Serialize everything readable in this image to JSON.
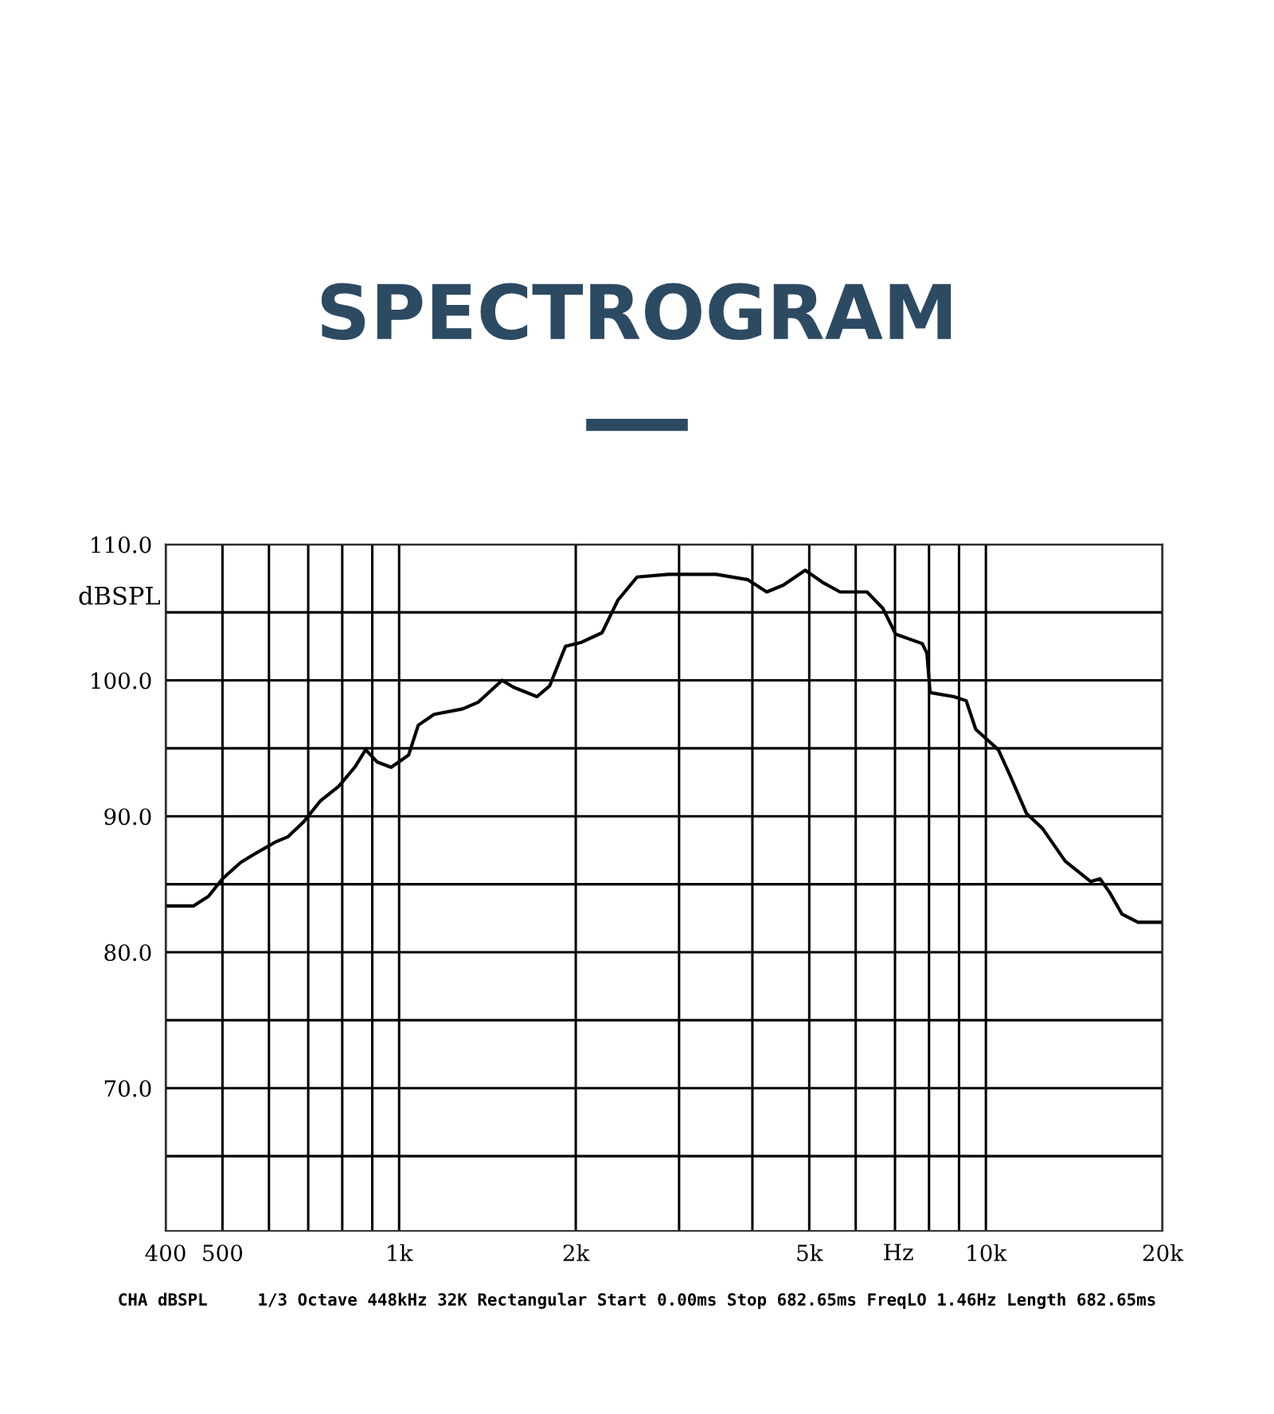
{
  "chart_data": {
    "type": "line",
    "title": "SPECTROGRAM",
    "ylabel": "dBSPL",
    "xlabel": "Hz",
    "annotations": [
      "CHA dBSPL     1/3 Octave 448kHz 32K Rectangular Start 0.00ms Stop 682.65ms FreqLO 1.46Hz Length 682.65ms"
    ],
    "log": "x",
    "grid": true,
    "legend": false,
    "line_style": "solid",
    "marker": "none",
    "xlim": [
      400,
      20000
    ],
    "ylim": [
      59.5,
      110
    ],
    "xticks": [
      {
        "value": 400,
        "label": "400"
      },
      {
        "value": 500,
        "label": "500"
      },
      {
        "value": 600,
        "label": null
      },
      {
        "value": 700,
        "label": null
      },
      {
        "value": 800,
        "label": null
      },
      {
        "value": 900,
        "label": null
      },
      {
        "value": 1000,
        "label": "1k"
      },
      {
        "value": 2000,
        "label": "2k"
      },
      {
        "value": 3000,
        "label": null
      },
      {
        "value": 4000,
        "label": null
      },
      {
        "value": 5000,
        "label": "5k"
      },
      {
        "value": 6000,
        "label": null
      },
      {
        "value": 7000,
        "label": null
      },
      {
        "value": 8000,
        "label": null
      },
      {
        "value": 9000,
        "label": null
      },
      {
        "value": 10000,
        "label": "10k"
      },
      {
        "value": 20000,
        "label": "20k"
      }
    ],
    "yticks": [
      {
        "value": 65,
        "label": null
      },
      {
        "value": 70,
        "label": "70.0"
      },
      {
        "value": 75,
        "label": null
      },
      {
        "value": 80,
        "label": "80.0"
      },
      {
        "value": 85,
        "label": null
      },
      {
        "value": 90,
        "label": "90.0"
      },
      {
        "value": 95,
        "label": null
      },
      {
        "value": 100,
        "label": "100.0"
      },
      {
        "value": 105,
        "label": null
      },
      {
        "value": 110,
        "label": "110.0"
      }
    ],
    "series": [
      {
        "color": "#000000",
        "x": [
          400,
          446,
          473,
          500,
          537,
          571,
          615,
          647,
          688,
          733,
          789,
          840,
          877,
          917,
          969,
          1038,
          1078,
          1147,
          1283,
          1365,
          1498,
          1565,
          1718,
          1806,
          1921,
          2046,
          2217,
          2360,
          2544,
          2879,
          3469,
          3931,
          4232,
          4514,
          4922,
          5272,
          5643,
          6272,
          6674,
          7017,
          7792,
          7934,
          8034,
          8818,
          9257,
          9609,
          10500,
          11020,
          11730,
          12490,
          13650,
          15080,
          15650,
          16250,
          17060,
          18160,
          19820
        ],
        "values": [
          83.4,
          83.4,
          84.1,
          85.4,
          86.6,
          87.3,
          88.1,
          88.5,
          89.6,
          91.1,
          92.2,
          93.6,
          94.9,
          94.0,
          93.6,
          94.5,
          96.7,
          97.5,
          97.9,
          98.4,
          100.0,
          99.5,
          98.8,
          99.6,
          102.5,
          102.8,
          103.5,
          105.9,
          107.6,
          107.8,
          107.8,
          107.4,
          106.5,
          107.0,
          108.1,
          107.2,
          106.5,
          106.5,
          105.3,
          103.4,
          102.7,
          102.0,
          99.1,
          98.8,
          98.5,
          96.4,
          94.9,
          92.9,
          90.2,
          89.1,
          86.7,
          85.2,
          85.4,
          84.4,
          82.8,
          82.2,
          82.2
        ]
      }
    ]
  }
}
